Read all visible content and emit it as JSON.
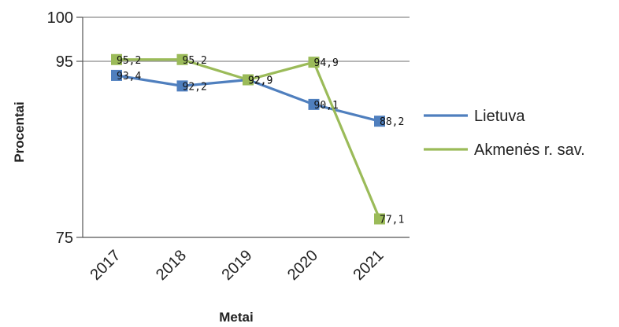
{
  "chart_data": {
    "type": "line",
    "categories": [
      "2017",
      "2018",
      "2019",
      "2020",
      "2021"
    ],
    "xlabel": "Metai",
    "ylabel": "Procentai",
    "ylim": [
      75,
      100
    ],
    "yticks": [
      "75",
      "95",
      "100"
    ],
    "grid": "horizontal",
    "legend_position": "right",
    "series": [
      {
        "name": "Lietuva",
        "color": "#4F7FBE",
        "values": [
          93.4,
          92.2,
          92.9,
          90.1,
          88.2
        ],
        "labels": [
          "93,4",
          "92,2",
          "92,9",
          "90,1",
          "88,2"
        ]
      },
      {
        "name": "Akmenės r. sav.",
        "color": "#9BBB59",
        "values": [
          95.2,
          95.2,
          92.9,
          94.9,
          77.1
        ],
        "labels": [
          "95,2",
          "95,2",
          "92,9",
          "94,9",
          "77,1"
        ]
      }
    ]
  }
}
